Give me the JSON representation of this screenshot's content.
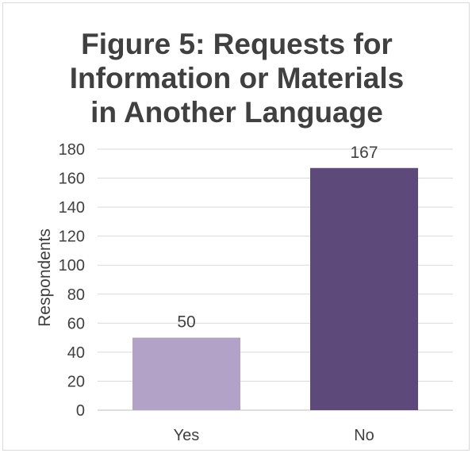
{
  "chart_data": {
    "type": "bar",
    "title_lines": [
      "Figure 5: Requests for",
      "Information or Materials",
      "in Another Language"
    ],
    "xlabel": "",
    "ylabel": "Respondents",
    "categories": [
      "Yes",
      "No"
    ],
    "values": [
      50,
      167
    ],
    "data_labels": [
      "50",
      "167"
    ],
    "ylim": [
      0,
      180
    ],
    "yticks": [
      0,
      20,
      40,
      60,
      80,
      100,
      120,
      140,
      160,
      180
    ],
    "bar_colors": [
      "#b3a2c8",
      "#5e4a7a"
    ],
    "grid": true,
    "legend": false
  }
}
